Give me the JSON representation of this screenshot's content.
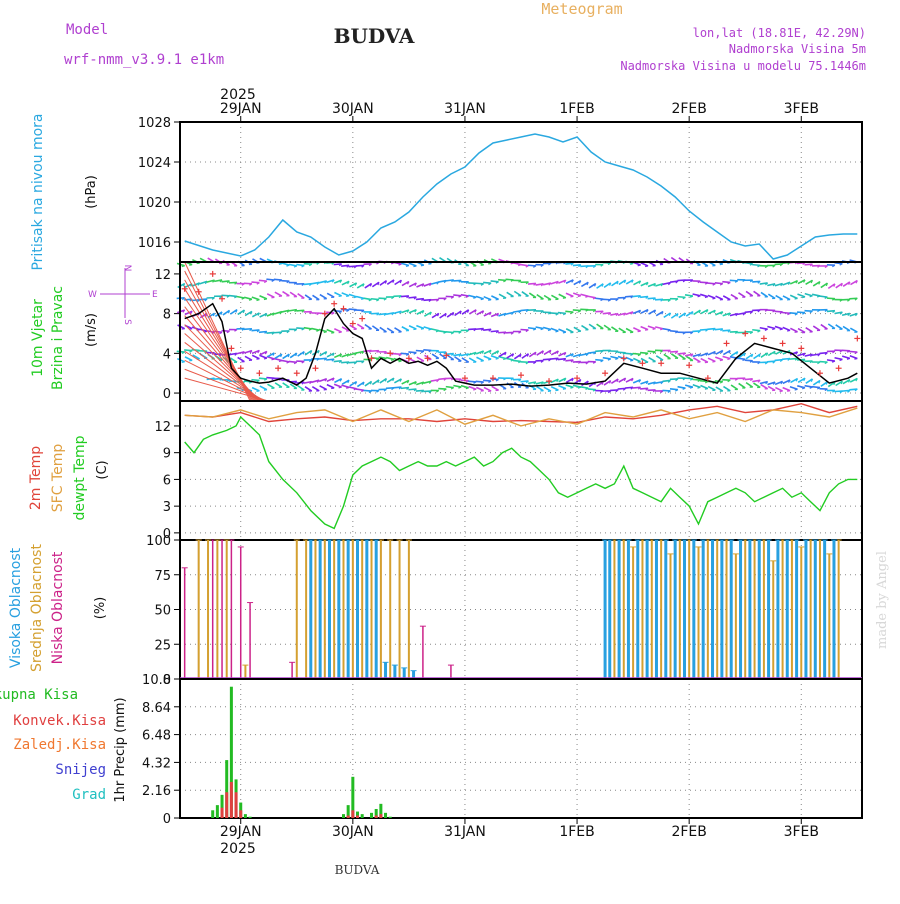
{
  "header": {
    "model_label": "Model",
    "model_name": "wrf-nmm_v3.9.1 e1km",
    "station_title": "BUDVA",
    "product": "Meteogram",
    "lonlat": "lon,lat (18.81E, 42.29N)",
    "elevation": "Nadmorska Visina 5m",
    "model_elevation": "Nadmorska Visina u modelu 75.1446m"
  },
  "footer": {
    "station": "BUDVA",
    "credit": "made by Angel"
  },
  "dates": {
    "year": "2025",
    "labels": [
      "29JAN",
      "30JAN",
      "31JAN",
      "1FEB",
      "2FEB",
      "3FEB"
    ]
  },
  "wind_compass": {
    "n": "N",
    "s": "S",
    "w": "W",
    "e": "E"
  },
  "colors": {
    "pressure": "#2aa8e0",
    "wind_speed": "#000000",
    "gust": "#e83a3a",
    "temp2m": "#e0443a",
    "sfc_temp": "#e0a040",
    "dewpoint": "#22cc22",
    "high_cloud": "#28a0e0",
    "mid_cloud": "#d4a030",
    "low_cloud": "#cc2288",
    "total_precip": "#22bb22",
    "conv_precip": "#e04040",
    "frozen_precip": "#f07830",
    "snow": "#4040d0",
    "graupel": "#20c0c0"
  },
  "chart_data": [
    {
      "type": "line",
      "panel": "pressure",
      "ylabel_side": "Pritisak na nivou mora",
      "unit": "(hPa)",
      "ylim": [
        1014,
        1028
      ],
      "yticks": [
        1016,
        1020,
        1024,
        1028
      ],
      "x_unit": "hours from 00 UTC 29JAN 2025",
      "x": [
        -12,
        -6,
        0,
        3,
        6,
        9,
        12,
        15,
        18,
        21,
        24,
        27,
        30,
        33,
        36,
        39,
        42,
        45,
        48,
        51,
        54,
        57,
        60,
        63,
        66,
        69,
        72,
        75,
        78,
        81,
        84,
        87,
        90,
        93,
        96,
        99,
        102,
        105,
        108,
        111,
        114,
        117,
        120,
        123,
        126,
        129,
        132
      ],
      "values": [
        1016.1,
        1015.2,
        1014.6,
        1015.2,
        1016.5,
        1018.2,
        1017.0,
        1016.5,
        1015.5,
        1014.7,
        1015.1,
        1016.0,
        1017.4,
        1018.0,
        1019.0,
        1020.5,
        1021.8,
        1022.8,
        1023.5,
        1024.9,
        1025.9,
        1026.2,
        1026.5,
        1026.8,
        1026.5,
        1026.0,
        1026.5,
        1025.0,
        1024.0,
        1023.6,
        1023.2,
        1022.5,
        1021.6,
        1020.5,
        1019.1,
        1018.0,
        1017.0,
        1016.0,
        1015.6,
        1015.8,
        1014.3,
        1014.7,
        1015.6,
        1016.5,
        1016.7,
        1016.8,
        1016.8
      ],
      "grid": true
    },
    {
      "type": "line",
      "panel": "wind",
      "ylabel_side": [
        "10m Vjetar",
        "Brzina i Pravac"
      ],
      "unit": "(m/s)",
      "ylim": [
        -0.8,
        13.2
      ],
      "yticks": [
        0,
        4,
        8,
        12
      ],
      "x_unit": "hours from 00 UTC 29JAN 2025",
      "series": [
        {
          "key": "speed",
          "x": [
            -12,
            -9,
            -6,
            -4,
            -2,
            0,
            2,
            4,
            6,
            9,
            12,
            14,
            16,
            18,
            20,
            22,
            24,
            26,
            28,
            30,
            32,
            34,
            36,
            38,
            40,
            42,
            44,
            46,
            48,
            50,
            54,
            58,
            62,
            66,
            70,
            74,
            78,
            82,
            86,
            90,
            94,
            98,
            102,
            106,
            110,
            114,
            118,
            122,
            126,
            130,
            132
          ],
          "values": [
            7.5,
            8.0,
            9.0,
            7.2,
            2.5,
            1.5,
            1.2,
            1.0,
            1.1,
            1.5,
            0.8,
            1.5,
            4.0,
            7.5,
            8.5,
            7.0,
            6.0,
            5.5,
            2.5,
            3.5,
            3.0,
            3.5,
            3.0,
            3.2,
            2.8,
            3.2,
            2.5,
            1.2,
            1.0,
            0.8,
            0.8,
            0.9,
            0.7,
            0.8,
            1.0,
            0.9,
            1.2,
            3.0,
            2.5,
            2.0,
            2.0,
            1.5,
            1.0,
            3.5,
            5.0,
            4.5,
            4.0,
            2.5,
            1.0,
            1.5,
            2.0
          ]
        },
        {
          "key": "gust",
          "x": [
            -12,
            -9,
            -6,
            -4,
            -2,
            0,
            4,
            8,
            12,
            16,
            18,
            20,
            22,
            24,
            26,
            28,
            32,
            36,
            40,
            44,
            48,
            54,
            60,
            66,
            72,
            78,
            82,
            86,
            90,
            96,
            100,
            104,
            108,
            112,
            116,
            120,
            124,
            128,
            132
          ],
          "values": [
            10.5,
            10.2,
            12.0,
            9.5,
            4.5,
            2.5,
            2.0,
            2.5,
            2.0,
            2.5,
            8.0,
            9.0,
            8.5,
            7.0,
            7.5,
            3.5,
            4.0,
            3.5,
            3.5,
            3.8,
            1.5,
            1.5,
            1.8,
            1.2,
            1.5,
            2.0,
            3.5,
            3.0,
            3.0,
            2.8,
            1.5,
            5.0,
            6.0,
            5.5,
            5.0,
            4.5,
            2.0,
            2.5,
            5.5
          ]
        }
      ],
      "grid": true
    },
    {
      "type": "line",
      "panel": "temperature",
      "ylabel_side": [
        "2m Temp",
        "SFC Temp",
        "dewpt Temp"
      ],
      "unit": "(C)",
      "ylim": [
        -0.8,
        14.8
      ],
      "yticks": [
        0,
        3,
        6,
        9,
        12
      ],
      "x_unit": "hours from 00 UTC 29JAN 2025",
      "series": [
        {
          "key": "temp2m",
          "x": [
            -12,
            -6,
            0,
            6,
            12,
            18,
            24,
            30,
            36,
            42,
            48,
            54,
            60,
            66,
            72,
            78,
            84,
            90,
            96,
            102,
            108,
            114,
            120,
            126,
            132
          ],
          "values": [
            13.2,
            13.0,
            13.5,
            12.5,
            12.8,
            13.0,
            12.6,
            12.8,
            12.8,
            12.5,
            12.8,
            12.5,
            12.6,
            12.5,
            12.4,
            13.0,
            12.8,
            13.2,
            13.8,
            14.2,
            13.5,
            13.8,
            14.5,
            13.5,
            14.2
          ]
        },
        {
          "key": "sfc_temp",
          "x": [
            -12,
            -6,
            0,
            6,
            12,
            18,
            24,
            30,
            36,
            42,
            48,
            54,
            60,
            66,
            72,
            78,
            84,
            90,
            96,
            102,
            108,
            114,
            120,
            126,
            132
          ],
          "values": [
            13.2,
            13.0,
            13.8,
            12.8,
            13.5,
            13.8,
            12.5,
            13.8,
            12.5,
            13.8,
            12.2,
            13.2,
            12.0,
            12.8,
            12.2,
            13.5,
            13.0,
            13.8,
            12.8,
            13.5,
            12.5,
            13.8,
            13.5,
            13.0,
            14.0
          ]
        },
        {
          "key": "dewpoint",
          "x": [
            -12,
            -10,
            -8,
            -6,
            -3,
            -1,
            0,
            2,
            4,
            6,
            9,
            12,
            15,
            18,
            20,
            22,
            24,
            26,
            28,
            30,
            32,
            34,
            36,
            38,
            40,
            42,
            44,
            46,
            48,
            50,
            52,
            54,
            56,
            58,
            60,
            62,
            64,
            66,
            68,
            70,
            72,
            74,
            76,
            78,
            80,
            82,
            84,
            86,
            88,
            90,
            92,
            94,
            96,
            98,
            100,
            102,
            104,
            106,
            108,
            110,
            112,
            114,
            116,
            118,
            120,
            122,
            124,
            126,
            128,
            130,
            132
          ],
          "values": [
            10.2,
            9.0,
            10.5,
            11.0,
            11.5,
            12.0,
            13.0,
            12.0,
            11.0,
            8.0,
            6.0,
            4.5,
            2.5,
            1.0,
            0.5,
            3.0,
            6.5,
            7.5,
            8.0,
            8.5,
            8.0,
            7.0,
            7.5,
            8.0,
            7.5,
            7.5,
            8.0,
            7.5,
            8.0,
            8.5,
            7.5,
            8.0,
            9.0,
            9.5,
            8.5,
            8.0,
            7.0,
            6.0,
            4.5,
            4.0,
            4.5,
            5.0,
            5.5,
            5.0,
            5.5,
            7.5,
            5.0,
            4.5,
            4.0,
            3.5,
            5.0,
            4.0,
            3.0,
            1.0,
            3.5,
            4.0,
            4.5,
            5.0,
            4.5,
            3.5,
            4.0,
            4.5,
            5.0,
            4.0,
            4.5,
            3.5,
            2.5,
            4.5,
            5.5,
            6.0,
            6.0
          ]
        }
      ],
      "grid": true
    },
    {
      "type": "bar",
      "panel": "cloud",
      "ylabel_side": [
        "Visoka Oblacnost",
        "Srednja Oblacnost",
        "Niska Oblacnost"
      ],
      "unit": "(%)",
      "ylim": [
        0,
        100
      ],
      "yticks": [
        0,
        25,
        50,
        75,
        100
      ],
      "x_unit": "hours from 00 UTC 29JAN 2025",
      "series": [
        {
          "key": "low",
          "x": [
            -12,
            -9,
            -6,
            -4,
            -2,
            0,
            2,
            11,
            18,
            24,
            30,
            39,
            45
          ],
          "values": [
            80,
            100,
            100,
            100,
            100,
            95,
            55,
            12,
            100,
            100,
            100,
            38,
            10
          ]
        },
        {
          "key": "mid",
          "x": [
            -9,
            -7,
            -5,
            -3,
            1,
            12,
            14,
            16,
            18,
            20,
            22,
            24,
            26,
            28,
            30,
            32,
            34,
            36,
            80,
            82,
            84,
            86,
            88,
            90,
            92,
            94,
            96,
            98,
            100,
            102,
            104,
            106,
            108,
            110,
            112,
            114,
            116,
            118,
            120,
            122,
            124,
            126,
            128
          ],
          "values": [
            100,
            100,
            100,
            100,
            10,
            100,
            100,
            100,
            100,
            100,
            100,
            100,
            100,
            100,
            100,
            100,
            100,
            100,
            100,
            100,
            95,
            100,
            100,
            100,
            90,
            100,
            100,
            95,
            100,
            100,
            100,
            90,
            100,
            100,
            100,
            85,
            100,
            100,
            95,
            100,
            100,
            90,
            100
          ]
        },
        {
          "key": "high",
          "x": [
            15,
            17,
            19,
            21,
            23,
            25,
            27,
            29,
            31,
            33,
            35,
            37,
            78,
            79,
            81,
            83,
            85,
            87,
            89,
            91,
            93,
            95,
            97,
            99,
            101,
            103,
            105,
            107,
            109,
            111,
            113,
            115,
            117,
            119,
            121,
            123,
            125,
            127
          ],
          "values": [
            100,
            100,
            100,
            100,
            100,
            100,
            100,
            100,
            12,
            10,
            8,
            6,
            100,
            100,
            100,
            100,
            100,
            100,
            100,
            100,
            100,
            100,
            100,
            100,
            100,
            100,
            100,
            100,
            100,
            100,
            100,
            100,
            100,
            100,
            100,
            100,
            100,
            100
          ]
        }
      ],
      "grid": true
    },
    {
      "type": "bar",
      "panel": "precip",
      "ylabel_side": [
        "Ukupna Kisa",
        "Konvek.Kisa",
        "Zaledj.Kisa",
        "Snijeg",
        "Grad"
      ],
      "unit": "1hr Precip (mm)",
      "ylim": [
        0,
        10.8
      ],
      "yticks": [
        0,
        2.16,
        4.32,
        6.48,
        8.64,
        10.8
      ],
      "x_unit": "hours from 00 UTC 29JAN 2025",
      "series": [
        {
          "key": "total",
          "x": [
            -6,
            -5,
            -4,
            -3,
            -2,
            -1,
            0,
            1,
            2,
            22,
            23,
            24,
            25,
            26,
            28,
            29,
            30,
            31,
            32
          ],
          "values": [
            0.6,
            1.0,
            1.8,
            4.5,
            10.2,
            3.0,
            1.2,
            0.3,
            0.1,
            0.3,
            1.0,
            3.2,
            0.5,
            0.3,
            0.4,
            0.7,
            1.1,
            0.4,
            0.1
          ]
        },
        {
          "key": "convective",
          "x": [
            -4,
            -3,
            -2,
            -1,
            0,
            23,
            24,
            25,
            29,
            30
          ],
          "values": [
            0.8,
            2.0,
            2.8,
            2.0,
            0.6,
            0.2,
            0.6,
            0.2,
            0.2,
            0.3
          ]
        }
      ],
      "grid": true
    }
  ]
}
